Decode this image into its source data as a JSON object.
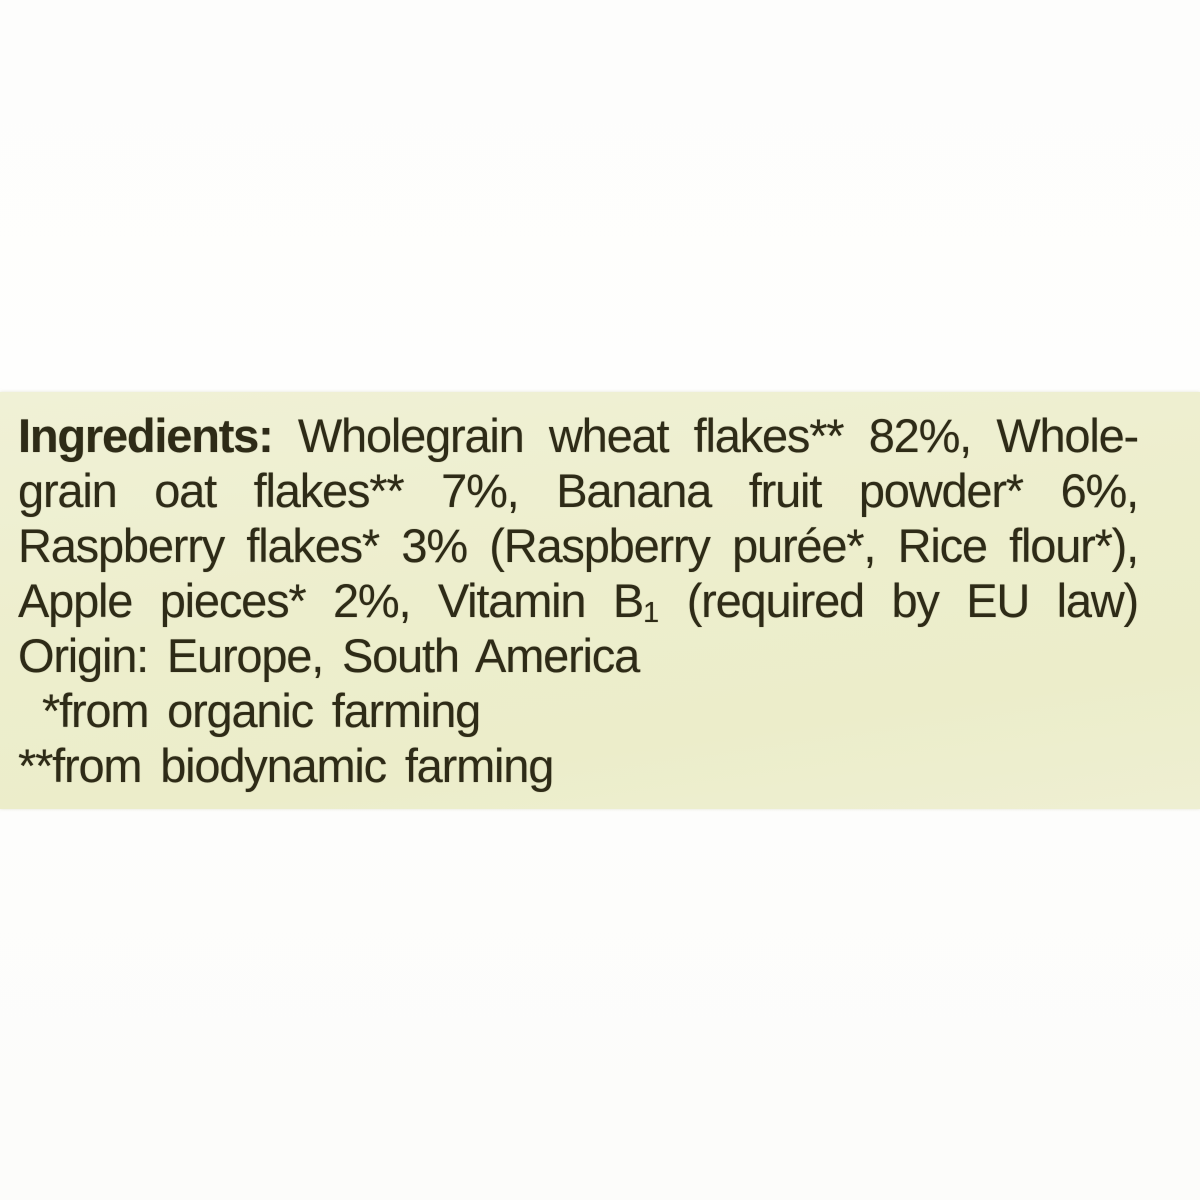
{
  "colors": {
    "page_background": "#fdfdfc",
    "panel_background": "#edeecd",
    "text": "#2e2b17"
  },
  "ingredients_label": {
    "heading": "Ingredients:",
    "line1_rest": " Wholegrain wheat flakes** 82%, Whole-",
    "line2": "grain oat flakes** 7%, Banana fruit powder* 6%,",
    "line3": "Raspberry flakes* 3% (Raspberry purée*, Rice flour*),",
    "line4_pre": "Apple pieces* 2%, Vitamin B",
    "line4_sub": "1",
    "line4_post": " (required by EU law)",
    "origin_line": "Origin: Europe, South America",
    "footnote_organic": "*from organic farming",
    "footnote_biodynamic": "**from biodynamic farming"
  }
}
